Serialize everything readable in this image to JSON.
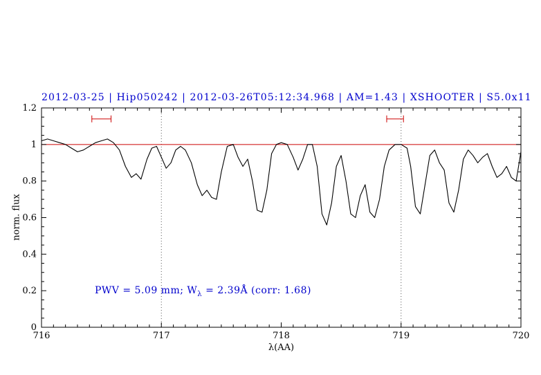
{
  "annotation": {
    "prefix": "PWV = 5.09 mm; W",
    "sub": "λ",
    "suffix": " = 2.39Å (corr: 1.68)"
  },
  "chart_data": {
    "type": "line",
    "title": "2012-03-25 | Hip050242 | 2012-03-26T05:12:34.968 | AM=1.43 | XSHOOTER | S5.0x11",
    "xlabel": "λ(AA)",
    "ylabel": "norm. flux",
    "xlim": [
      716,
      720
    ],
    "ylim": [
      0,
      1.2
    ],
    "xticks": [
      716,
      717,
      718,
      719,
      720
    ],
    "xtick_labels": [
      "716",
      "717",
      "718",
      "719",
      "720"
    ],
    "x_minor_step": 0.1,
    "yticks": [
      0,
      0.2,
      0.4,
      0.6,
      0.8,
      1,
      1.2
    ],
    "ytick_labels": [
      "0",
      "0.2",
      "0.4",
      "0.6",
      "0.8",
      "1",
      "1.2"
    ],
    "y_minor_step": 0.05,
    "grid": false,
    "legend": "none",
    "reference_line_y": 1.0,
    "dotted_vlines": [
      717,
      719
    ],
    "markers": [
      {
        "x1": 716.42,
        "x2": 716.58,
        "y": 1.14
      },
      {
        "x1": 718.88,
        "x2": 719.02,
        "y": 1.14
      }
    ],
    "colors": {
      "title": "#0000cd",
      "annotation": "#0000cd",
      "reference_line": "#cc0000",
      "marker": "#cc0000",
      "spectrum": "#000000",
      "axis": "#000000",
      "dotted_vline": "#555555"
    },
    "series": [
      {
        "name": "spectrum",
        "x": [
          716.0,
          716.05,
          716.1,
          716.15,
          716.2,
          716.25,
          716.3,
          716.35,
          716.4,
          716.45,
          716.5,
          716.55,
          716.6,
          716.65,
          716.7,
          716.75,
          716.79,
          716.83,
          716.88,
          716.92,
          716.96,
          717.0,
          717.04,
          717.08,
          717.12,
          717.16,
          717.2,
          717.25,
          717.3,
          717.34,
          717.38,
          717.42,
          717.46,
          717.5,
          717.55,
          717.6,
          717.64,
          717.68,
          717.72,
          717.76,
          717.8,
          717.84,
          717.88,
          717.92,
          717.96,
          718.0,
          718.05,
          718.1,
          718.14,
          718.18,
          718.22,
          718.26,
          718.3,
          718.34,
          718.38,
          718.42,
          718.46,
          718.5,
          718.54,
          718.58,
          718.62,
          718.66,
          718.7,
          718.74,
          718.78,
          718.82,
          718.86,
          718.9,
          718.95,
          719.0,
          719.05,
          719.08,
          719.12,
          719.16,
          719.2,
          719.24,
          719.28,
          719.32,
          719.36,
          719.4,
          719.44,
          719.48,
          719.52,
          719.56,
          719.6,
          719.64,
          719.68,
          719.72,
          719.76,
          719.8,
          719.84,
          719.88,
          719.92,
          719.96,
          720.0
        ],
        "y": [
          1.02,
          1.03,
          1.02,
          1.01,
          1.0,
          0.98,
          0.96,
          0.97,
          0.99,
          1.01,
          1.02,
          1.03,
          1.01,
          0.97,
          0.88,
          0.82,
          0.84,
          0.81,
          0.92,
          0.98,
          0.99,
          0.93,
          0.87,
          0.9,
          0.97,
          0.99,
          0.97,
          0.9,
          0.78,
          0.72,
          0.75,
          0.71,
          0.7,
          0.85,
          0.99,
          1.0,
          0.93,
          0.88,
          0.92,
          0.8,
          0.64,
          0.63,
          0.75,
          0.95,
          1.0,
          1.01,
          1.0,
          0.93,
          0.86,
          0.92,
          1.0,
          1.0,
          0.88,
          0.62,
          0.56,
          0.68,
          0.88,
          0.94,
          0.8,
          0.62,
          0.6,
          0.72,
          0.78,
          0.63,
          0.6,
          0.7,
          0.88,
          0.97,
          1.0,
          1.0,
          0.98,
          0.88,
          0.66,
          0.62,
          0.78,
          0.94,
          0.97,
          0.9,
          0.86,
          0.68,
          0.63,
          0.75,
          0.92,
          0.97,
          0.94,
          0.9,
          0.93,
          0.95,
          0.88,
          0.82,
          0.84,
          0.88,
          0.82,
          0.8,
          0.96
        ]
      }
    ]
  }
}
